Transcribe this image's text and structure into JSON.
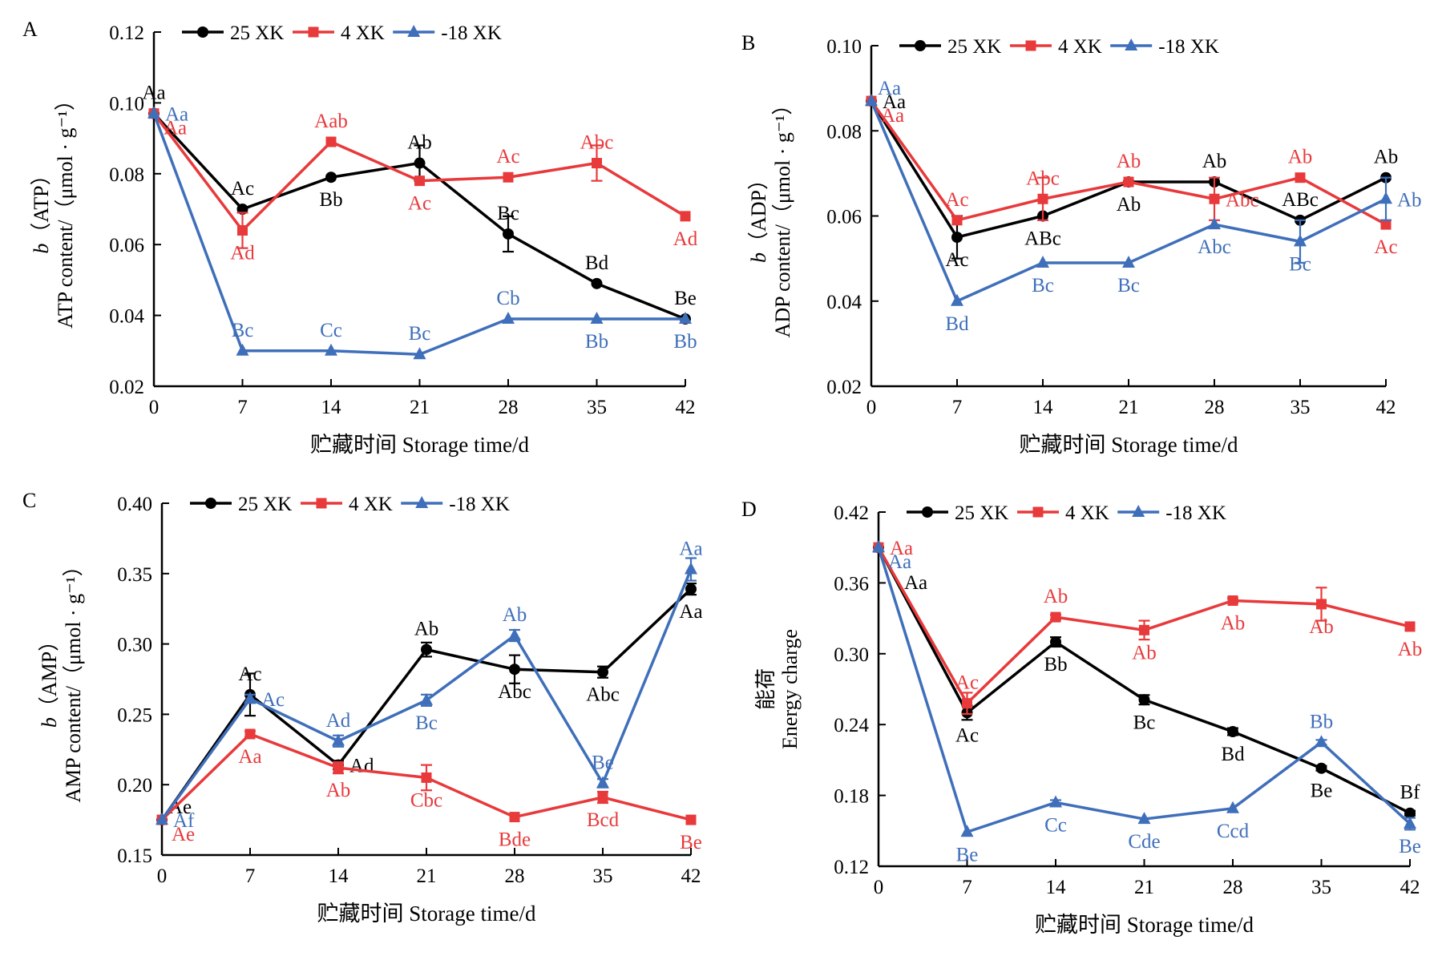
{
  "figure": {
    "legend": [
      {
        "name": "25 XK",
        "color": "#000000",
        "marker": "circle"
      },
      {
        "name": "4 XK",
        "color": "#e8393b",
        "marker": "square"
      },
      {
        "name": "-18 XK",
        "color": "#3f6fba",
        "marker": "triangle"
      }
    ],
    "xlabel": "贮藏时间 Storage time/d"
  },
  "chart_data": [
    {
      "panel": "A",
      "type": "line",
      "title": "",
      "ylabel_line1": "b（ATP）",
      "ylabel_line2": "ATP content/（μmol · g⁻¹）",
      "xlabel": "贮藏时间 Storage time/d",
      "x": [
        0,
        7,
        14,
        21,
        28,
        35,
        42
      ],
      "x_ticks": [
        "0",
        "7",
        "14",
        "21",
        "28",
        "35",
        "42"
      ],
      "ylim": [
        0.02,
        0.12
      ],
      "y_ticks": [
        "0.02",
        "0.04",
        "0.06",
        "0.08",
        "0.10",
        "0.12"
      ],
      "legend_position": "top",
      "grid": false,
      "series": [
        {
          "name": "25 XK",
          "color": "#000000",
          "marker": "circle",
          "values": [
            0.097,
            0.07,
            0.079,
            0.083,
            0.063,
            0.049,
            0.039
          ],
          "errors": [
            0.001,
            0.001,
            0.001,
            0.005,
            0.005,
            0.001,
            0.001
          ],
          "labels": [
            "Aa",
            "Ac",
            "Bb",
            "Ab",
            "Bc",
            "Bd",
            "Be"
          ],
          "label_pos": [
            "above",
            "above",
            "below",
            "above",
            "above",
            "above",
            "above"
          ]
        },
        {
          "name": "4 XK",
          "color": "#e8393b",
          "marker": "square",
          "values": [
            0.097,
            0.064,
            0.089,
            0.078,
            0.079,
            0.083,
            0.068
          ],
          "errors": [
            0.001,
            0.005,
            0.001,
            0.001,
            0.001,
            0.005,
            0.001
          ],
          "labels": [
            "Aa",
            "Ad",
            "Aab",
            "Ac",
            "Ac",
            "Abc",
            "Ad"
          ],
          "label_pos": [
            "right-below",
            "below",
            "above",
            "below",
            "above",
            "above",
            "below"
          ]
        },
        {
          "name": "-18 XK",
          "color": "#3f6fba",
          "marker": "triangle",
          "values": [
            0.097,
            0.03,
            0.03,
            0.029,
            0.039,
            0.039,
            0.039
          ],
          "errors": [
            0.001,
            0.001,
            0.001,
            0.001,
            0.001,
            0.001,
            0.001
          ],
          "labels": [
            "Aa",
            "Bc",
            "Cc",
            "Bc",
            "Cb",
            "Bb",
            "Bb"
          ],
          "label_pos": [
            "right",
            "above",
            "above",
            "above",
            "above",
            "below",
            "below"
          ]
        }
      ]
    },
    {
      "panel": "B",
      "type": "line",
      "title": "",
      "ylabel_line1": "b（ADP）",
      "ylabel_line2": "ADP content/（μmol · g⁻¹）",
      "xlabel": "贮藏时间 Storage time/d",
      "x": [
        0,
        7,
        14,
        21,
        28,
        35,
        42
      ],
      "x_ticks": [
        "0",
        "7",
        "14",
        "21",
        "28",
        "35",
        "42"
      ],
      "ylim": [
        0.02,
        0.1
      ],
      "y_ticks": [
        "0.02",
        "0.04",
        "0.06",
        "0.08",
        "0.10"
      ],
      "legend_position": "top",
      "grid": false,
      "series": [
        {
          "name": "25 XK",
          "color": "#000000",
          "marker": "circle",
          "values": [
            0.087,
            0.055,
            0.06,
            0.068,
            0.068,
            0.059,
            0.069
          ],
          "errors": [
            0.001,
            0.005,
            0.001,
            0.001,
            0.001,
            0.001,
            0.001
          ],
          "labels": [
            "Aa",
            "Ac",
            "ABc",
            "Ab",
            "Ab",
            "ABc",
            "Ab"
          ],
          "label_pos": [
            "right",
            "below",
            "below",
            "below",
            "above",
            "above",
            "above"
          ]
        },
        {
          "name": "4 XK",
          "color": "#e8393b",
          "marker": "square",
          "values": [
            0.087,
            0.059,
            0.064,
            0.068,
            0.064,
            0.069,
            0.058
          ],
          "errors": [
            0.001,
            0.001,
            0.005,
            0.001,
            0.005,
            0.001,
            0.001
          ],
          "labels": [
            "Aa",
            "Ac",
            "Abc",
            "Ab",
            "Abc",
            "Ab",
            "Ac"
          ],
          "label_pos": [
            "right-below",
            "above",
            "above",
            "above",
            "right",
            "above",
            "below"
          ]
        },
        {
          "name": "-18 XK",
          "color": "#3f6fba",
          "marker": "triangle",
          "values": [
            0.087,
            0.04,
            0.049,
            0.049,
            0.058,
            0.054,
            0.064
          ],
          "errors": [
            0.001,
            0.001,
            0.001,
            0.001,
            0.001,
            0.005,
            0.005
          ],
          "labels": [
            "Aa",
            "Bd",
            "Bc",
            "Bc",
            "Abc",
            "Bc",
            "Ab"
          ],
          "label_pos": [
            "right-above",
            "below",
            "below",
            "below",
            "below",
            "below",
            "right"
          ]
        }
      ]
    },
    {
      "panel": "C",
      "type": "line",
      "title": "",
      "ylabel_line1": "b（AMP）",
      "ylabel_line2": "AMP content/（μmol · g⁻¹）",
      "xlabel": "贮藏时间 Storage time/d",
      "x": [
        0,
        7,
        14,
        21,
        28,
        35,
        42
      ],
      "x_ticks": [
        "0",
        "7",
        "14",
        "21",
        "28",
        "35",
        "42"
      ],
      "ylim": [
        0.15,
        0.4
      ],
      "y_ticks": [
        "0.15",
        "0.20",
        "0.25",
        "0.30",
        "0.35",
        "0.40"
      ],
      "legend_position": "top",
      "grid": false,
      "series": [
        {
          "name": "25 XK",
          "color": "#000000",
          "marker": "circle",
          "values": [
            0.175,
            0.264,
            0.214,
            0.296,
            0.282,
            0.28,
            0.339
          ],
          "errors": [
            0.001,
            0.015,
            0.003,
            0.005,
            0.01,
            0.004,
            0.004
          ],
          "labels": [
            "Ae",
            "Ac",
            "Ad",
            "Ab",
            "Abc",
            "Abc",
            "Aa"
          ],
          "label_pos": [
            "right-above",
            "above",
            "right",
            "above",
            "below",
            "below",
            "below"
          ]
        },
        {
          "name": "4 XK",
          "color": "#e8393b",
          "marker": "square",
          "values": [
            0.175,
            0.236,
            0.212,
            0.205,
            0.177,
            0.191,
            0.175
          ],
          "errors": [
            0.001,
            0.002,
            0.004,
            0.009,
            0.001,
            0.004,
            0.001
          ],
          "labels": [
            "Ae",
            "Aa",
            "Ab",
            "Cbc",
            "Bde",
            "Bcd",
            "Be"
          ],
          "label_pos": [
            "right-below",
            "below",
            "below",
            "below",
            "below",
            "below",
            "below"
          ]
        },
        {
          "name": "-18 XK",
          "color": "#3f6fba",
          "marker": "triangle",
          "values": [
            0.175,
            0.261,
            0.231,
            0.26,
            0.306,
            0.201,
            0.353
          ],
          "errors": [
            0.001,
            0.003,
            0.004,
            0.004,
            0.004,
            0.003,
            0.008
          ],
          "labels": [
            "Af",
            "Ac",
            "Ad",
            "Bc",
            "Ab",
            "Be",
            "Aa"
          ],
          "label_pos": [
            "right",
            "right",
            "above",
            "below",
            "above",
            "above",
            "above"
          ]
        }
      ]
    },
    {
      "panel": "D",
      "type": "line",
      "title": "",
      "ylabel_line1": "能荷",
      "ylabel_line2": "Energy charge",
      "xlabel": "贮藏时间 Storage time/d",
      "x": [
        0,
        7,
        14,
        21,
        28,
        35,
        42
      ],
      "x_ticks": [
        "0",
        "7",
        "14",
        "21",
        "28",
        "35",
        "42"
      ],
      "ylim": [
        0.12,
        0.42
      ],
      "y_ticks": [
        "0.12",
        "0.18",
        "0.24",
        "0.30",
        "0.36",
        "0.42"
      ],
      "legend_position": "top",
      "grid": false,
      "series": [
        {
          "name": "25 XK",
          "color": "#000000",
          "marker": "circle",
          "values": [
            0.39,
            0.25,
            0.31,
            0.261,
            0.234,
            0.203,
            0.165
          ],
          "errors": [
            0.001,
            0.006,
            0.004,
            0.004,
            0.003,
            0.002,
            0.002
          ],
          "labels": [
            "Aa",
            "Ac",
            "Bb",
            "Bc",
            "Bd",
            "Be",
            "Bf"
          ],
          "label_pos": [
            "right-below2",
            "below",
            "below",
            "below",
            "below",
            "below",
            "above"
          ]
        },
        {
          "name": "4 XK",
          "color": "#e8393b",
          "marker": "square",
          "values": [
            0.39,
            0.258,
            0.331,
            0.32,
            0.345,
            0.342,
            0.323
          ],
          "errors": [
            0.001,
            0.009,
            0.002,
            0.008,
            0.002,
            0.014,
            0.001
          ],
          "labels": [
            "Aa",
            "Ac",
            "Ab",
            "Ab",
            "Ab",
            "Ab",
            "Ab"
          ],
          "label_pos": [
            "right",
            "above",
            "above",
            "below",
            "below",
            "below",
            "below"
          ]
        },
        {
          "name": "-18 XK",
          "color": "#3f6fba",
          "marker": "triangle",
          "values": [
            0.39,
            0.149,
            0.174,
            0.16,
            0.169,
            0.225,
            0.156
          ],
          "errors": [
            0.001,
            0.001,
            0.002,
            0.001,
            0.001,
            0.002,
            0.005
          ],
          "labels": [
            "Aa",
            "Be",
            "Cc",
            "Cde",
            "Ccd",
            "Bb",
            "Be"
          ],
          "label_pos": [
            "right-below",
            "below",
            "below",
            "below",
            "below",
            "above",
            "below"
          ]
        }
      ]
    }
  ]
}
